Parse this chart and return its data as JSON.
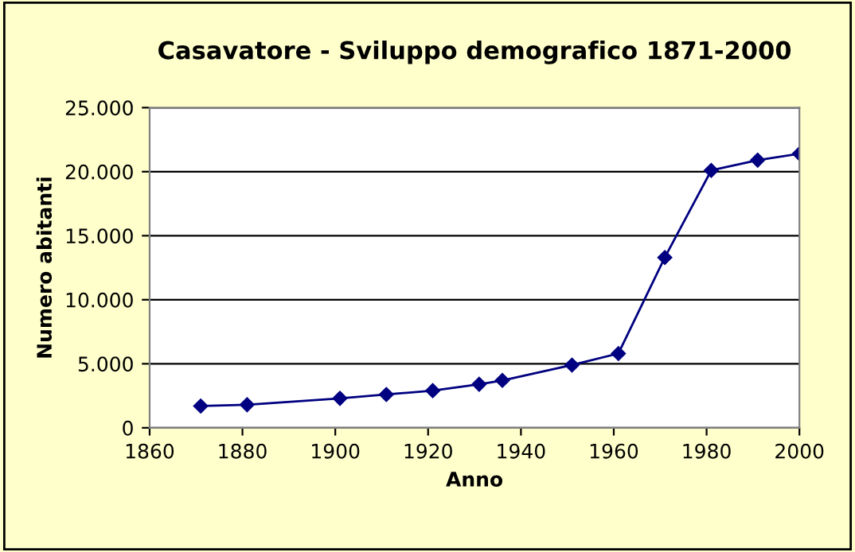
{
  "chart_data": {
    "type": "line",
    "title": "Casavatore - Sviluppo demografico 1871-2000",
    "xlabel": "Anno",
    "ylabel": "Numero abitanti",
    "x": [
      1871,
      1881,
      1901,
      1911,
      1921,
      1931,
      1936,
      1951,
      1961,
      1971,
      1981,
      1991,
      2000
    ],
    "series": [
      {
        "color": "#000080",
        "values": [
          1700,
          1800,
          2300,
          2600,
          2900,
          3400,
          3700,
          4900,
          5800,
          13300,
          20100,
          20900,
          21400
        ]
      }
    ],
    "xlim": [
      1860,
      2000
    ],
    "xticks": [
      1860,
      1880,
      1900,
      1920,
      1940,
      1960,
      1980,
      2000
    ],
    "ylim": [
      0,
      25000
    ],
    "yticks": [
      0,
      {
        "value": 5000,
        "label": "5.000"
      },
      {
        "value": 10000,
        "label": "10.000"
      },
      {
        "value": 15000,
        "label": "15.000"
      },
      {
        "value": 20000,
        "label": "20.000"
      },
      {
        "value": 25000,
        "label": "25.000"
      }
    ],
    "grid": "y",
    "marker": "diamond",
    "line_style": "solid",
    "legend": false
  }
}
